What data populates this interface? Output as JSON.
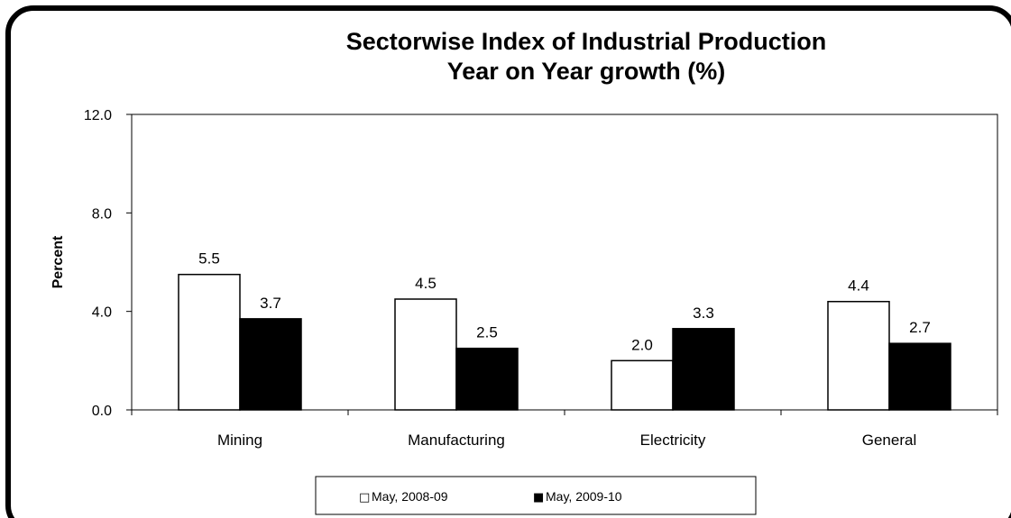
{
  "chart_data": {
    "type": "bar",
    "title": "Sectorwise Index of Industrial Production",
    "subtitle": "Year on Year growth (%)",
    "ylabel": "Percent",
    "xlabel": "",
    "ylim": [
      0,
      12
    ],
    "yticks": [
      "0.0",
      "4.0",
      "8.0",
      "12.0"
    ],
    "categories": [
      "Mining",
      "Manufacturing",
      "Electricity",
      "General"
    ],
    "series": [
      {
        "name": "May, 2008-09",
        "values": [
          5.5,
          4.5,
          2.0,
          4.4
        ],
        "labels": [
          "5.5",
          "4.5",
          "2.0",
          "4.4"
        ],
        "color": "#ffffff"
      },
      {
        "name": "May, 2009-10",
        "values": [
          3.7,
          2.5,
          3.3,
          2.7
        ],
        "labels": [
          "3.7",
          "2.5",
          "3.3",
          "2.7"
        ],
        "color": "#000000"
      }
    ],
    "grid": false,
    "legend": "bottom",
    "legend_markers": [
      "□",
      "■"
    ]
  }
}
